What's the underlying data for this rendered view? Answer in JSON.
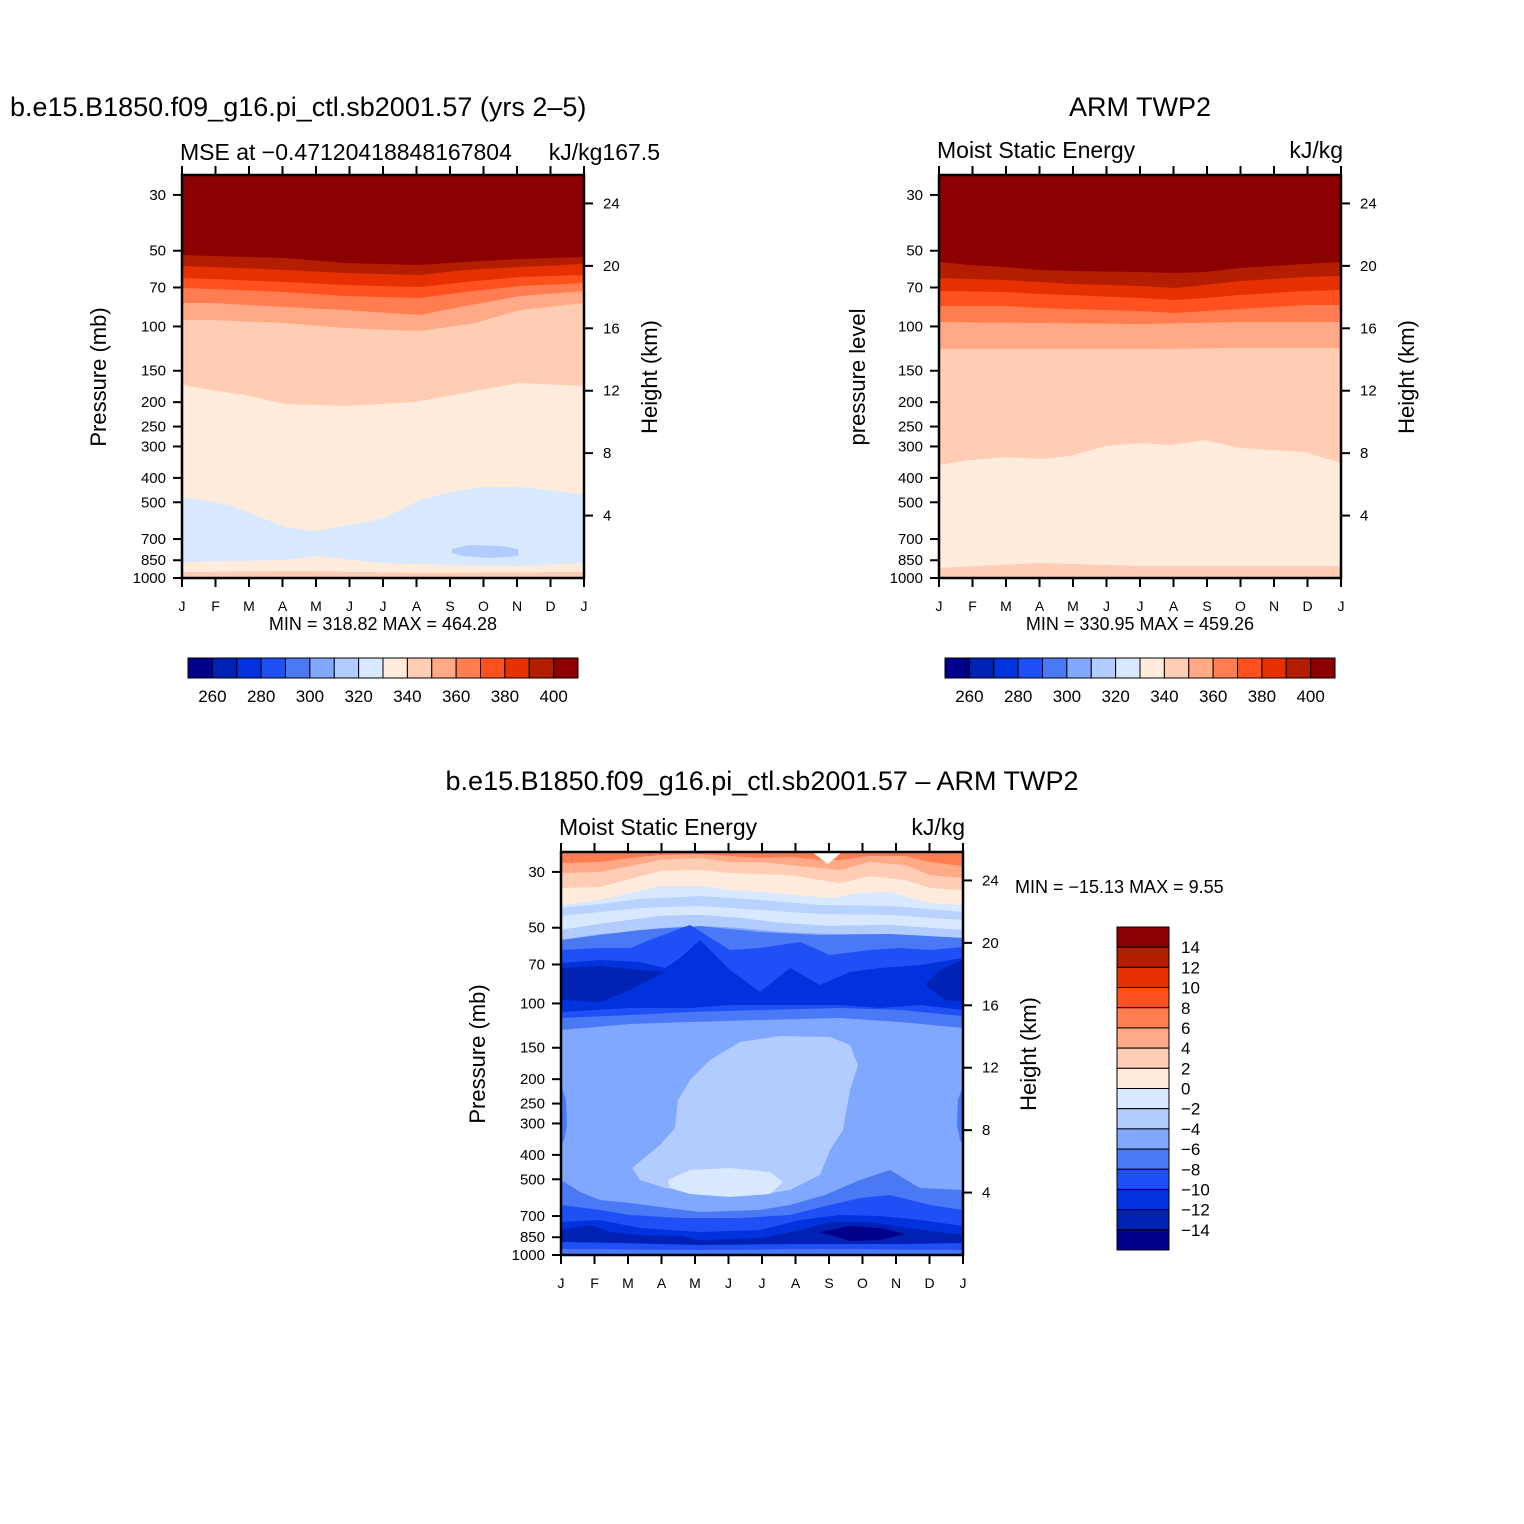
{
  "palette": [
    "#00008b",
    "#0022b4",
    "#0033dd",
    "#1e50f5",
    "#4b78f5",
    "#80a8ff",
    "#b3ccff",
    "#d7e8ff",
    "#ffebdc",
    "#ffccb4",
    "#ffa986",
    "#ff7d50",
    "#ff5020",
    "#e63000",
    "#b41e00",
    "#8b0000"
  ],
  "months": [
    "J",
    "F",
    "M",
    "A",
    "M",
    "J",
    "J",
    "A",
    "S",
    "O",
    "N",
    "D",
    "J"
  ],
  "pressure_ticks": [
    "30",
    "50",
    "70",
    "100",
    "150",
    "200",
    "250",
    "300",
    "400",
    "500",
    "700",
    "850",
    "1000"
  ],
  "height_ticks": [
    "24",
    "20",
    "16",
    "12",
    "8",
    "4"
  ],
  "charts": {
    "model": {
      "title": "b.e15.B1850.f09_g16.pi_ctl.sb2001.57 (yrs 2–5)",
      "left_label": "MSE at −0.47120418848167804",
      "right_label": "kJ/kg167.5",
      "ylabel": "Pressure (mb)",
      "ylabel_right": "Height (km)",
      "stats": "MIN = 318.82 MAX = 464.28",
      "colorbar_labels": [
        "260",
        "280",
        "300",
        "320",
        "340",
        "360",
        "380",
        "400"
      ]
    },
    "obs": {
      "title": "ARM TWP2",
      "left_label": "Moist Static Energy",
      "right_label": "kJ/kg",
      "ylabel": "pressure level",
      "ylabel_right": "Height (km)",
      "stats": "MIN = 330.95 MAX = 459.26",
      "colorbar_labels": [
        "260",
        "280",
        "300",
        "320",
        "340",
        "360",
        "380",
        "400"
      ]
    },
    "diff": {
      "title": "b.e15.B1850.f09_g16.pi_ctl.sb2001.57 – ARM TWP2",
      "left_label": "Moist Static Energy",
      "right_label": "kJ/kg",
      "ylabel": "Pressure (mb)",
      "ylabel_right": "Height (km)",
      "stats": "MIN = −15.13 MAX =    9.55",
      "colorbar_labels": [
        "14",
        "12",
        "10",
        "8",
        "6",
        "4",
        "2",
        "0",
        "−2",
        "−4",
        "−6",
        "−8",
        "−10",
        "−12",
        "−14"
      ]
    }
  },
  "chart_data": [
    {
      "type": "heatmap",
      "name": "model",
      "x": [
        "J",
        "F",
        "M",
        "A",
        "M",
        "J",
        "J",
        "A",
        "S",
        "O",
        "N",
        "D",
        "J"
      ],
      "y_pressure": [
        30,
        50,
        70,
        100,
        150,
        200,
        250,
        300,
        400,
        500,
        700,
        850,
        1000
      ],
      "units": "kJ/kg",
      "min": 318.82,
      "max": 464.28,
      "levels": [
        260,
        270,
        280,
        290,
        300,
        310,
        320,
        330,
        340,
        350,
        360,
        370,
        380,
        390,
        400
      ],
      "contour_tops_level_pressure": {
        "400": [
          53,
          53,
          54,
          55,
          56,
          58,
          59,
          59,
          58,
          57,
          56,
          55,
          53
        ],
        "390": [
          59,
          59,
          60,
          61,
          63,
          65,
          66,
          66,
          65,
          64,
          62,
          61,
          59
        ],
        "380": [
          65,
          65,
          66,
          67,
          69,
          72,
          73,
          73,
          72,
          70,
          68,
          67,
          65
        ],
        "370": [
          72,
          72,
          73,
          74,
          77,
          80,
          81,
          81,
          79,
          77,
          75,
          73,
          72
        ],
        "360": [
          82,
          82,
          83,
          85,
          88,
          91,
          93,
          92,
          90,
          88,
          86,
          84,
          82
        ],
        "350": [
          97,
          97,
          98,
          100,
          103,
          106,
          108,
          107,
          105,
          102,
          100,
          99,
          97
        ],
        "340": [
          175,
          185,
          190,
          210,
          215,
          210,
          205,
          200,
          185,
          165,
          155,
          165,
          175
        ],
        "330": [
          460,
          500,
          550,
          650,
          700,
          650,
          620,
          520,
          470,
          440,
          440,
          460,
          480
        ],
        "320": [
          1100,
          1100,
          1100,
          1100,
          1100,
          1100,
          1100,
          1100,
          1100,
          1100,
          1100,
          1100,
          1100
        ]
      }
    },
    {
      "type": "heatmap",
      "name": "obs",
      "x": [
        "J",
        "F",
        "M",
        "A",
        "M",
        "J",
        "J",
        "A",
        "S",
        "O",
        "N",
        "D",
        "J"
      ],
      "y_pressure": [
        30,
        50,
        70,
        100,
        150,
        200,
        250,
        300,
        400,
        500,
        700,
        850,
        1000
      ],
      "units": "kJ/kg",
      "min": 330.95,
      "max": 459.26,
      "levels": [
        260,
        270,
        280,
        290,
        300,
        310,
        320,
        330,
        340,
        350,
        360,
        370,
        380,
        390,
        400
      ]
    },
    {
      "type": "heatmap",
      "name": "diff",
      "x": [
        "J",
        "F",
        "M",
        "A",
        "M",
        "J",
        "J",
        "A",
        "S",
        "O",
        "N",
        "D",
        "J"
      ],
      "y_pressure": [
        30,
        50,
        70,
        100,
        150,
        200,
        250,
        300,
        400,
        500,
        700,
        850,
        1000
      ],
      "units": "kJ/kg",
      "min": -15.13,
      "max": 9.55,
      "levels": [
        -14,
        -12,
        -10,
        -8,
        -6,
        -4,
        -2,
        0,
        2,
        4,
        6,
        8,
        10,
        12,
        14
      ]
    }
  ]
}
